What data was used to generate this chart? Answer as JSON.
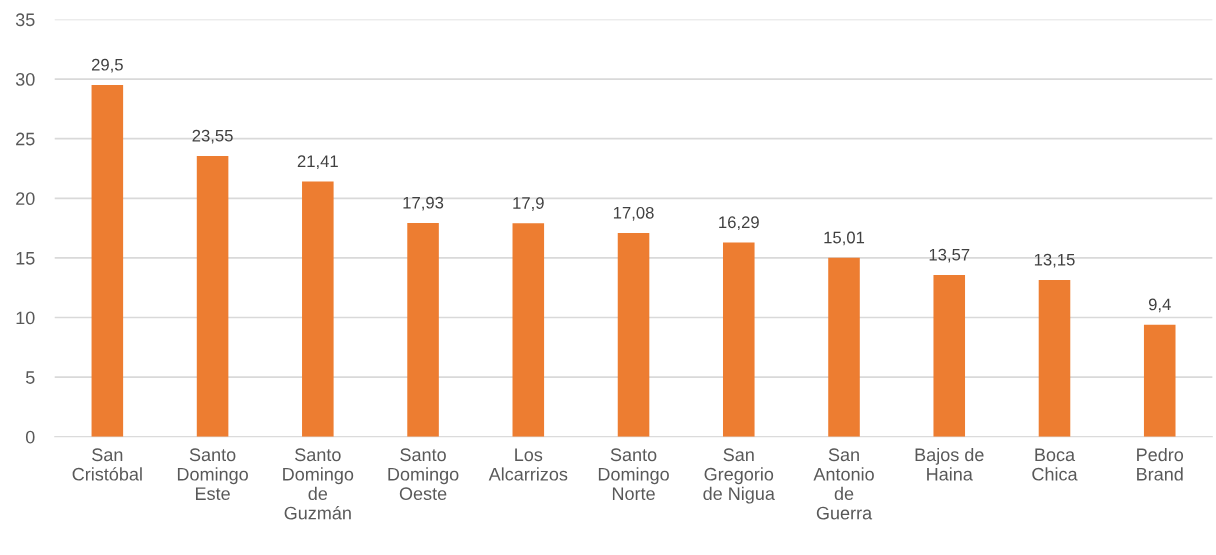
{
  "chart_data": {
    "type": "bar",
    "categories": [
      "San\nCristóbal",
      "Santo\nDomingo\nEste",
      "Santo\nDomingo\nde\nGuzmán",
      "Santo\nDomingo\nOeste",
      "Los\nAlcarrizos",
      "Santo\nDomingo\nNorte",
      "San\nGregorio\nde Nigua",
      "San\nAntonio\nde\nGuerra",
      "Bajos de\nHaina",
      "Boca\nChica",
      "Pedro\nBrand"
    ],
    "values": [
      29.5,
      23.55,
      21.41,
      17.93,
      17.9,
      17.08,
      16.29,
      15.01,
      13.57,
      13.15,
      9.4
    ],
    "value_labels": [
      "29,5",
      "23,55",
      "21,41",
      "17,93",
      "17,9",
      "17,08",
      "16,29",
      "15,01",
      "13,57",
      "13,15",
      "9,4"
    ],
    "color": "#ed7d31",
    "ylim": [
      0,
      35
    ],
    "yticks": [
      0,
      5,
      10,
      15,
      20,
      25,
      30,
      35
    ],
    "grid": "y"
  }
}
